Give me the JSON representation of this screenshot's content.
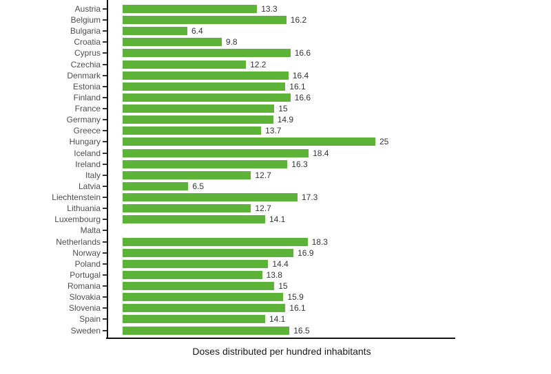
{
  "chart_data": {
    "type": "bar",
    "orientation": "horizontal",
    "title": "",
    "xlabel": "Doses distributed per hundred inhabitants",
    "ylabel": "",
    "xlim": [
      0,
      33
    ],
    "grid": false,
    "legend": false,
    "categories": [
      "Austria",
      "Belgium",
      "Bulgaria",
      "Croatia",
      "Cyprus",
      "Czechia",
      "Denmark",
      "Estonia",
      "Finland",
      "France",
      "Germany",
      "Greece",
      "Hungary",
      "Iceland",
      "Ireland",
      "Italy",
      "Latvia",
      "Liechtenstein",
      "Lithuania",
      "Luxembourg",
      "Malta",
      "Netherlands",
      "Norway",
      "Poland",
      "Portugal",
      "Romania",
      "Slovakia",
      "Slovenia",
      "Spain",
      "Sweden"
    ],
    "values": [
      13.3,
      16.2,
      6.4,
      9.8,
      16.6,
      12.2,
      16.4,
      16.1,
      16.6,
      15,
      14.9,
      13.7,
      25,
      18.4,
      16.3,
      12.7,
      6.5,
      17.3,
      12.7,
      14.1,
      null,
      18.3,
      16.9,
      14.4,
      13.8,
      15,
      15.9,
      16.1,
      14.1,
      16.5
    ],
    "value_labels": [
      "13.3",
      "16.2",
      "6.4",
      "9.8",
      "16.6",
      "12.2",
      "16.4",
      "16.1",
      "16.6",
      "15",
      "14.9",
      "13.7",
      "25",
      "18.4",
      "16.3",
      "12.7",
      "6.5",
      "17.3",
      "12.7",
      "14.1",
      "",
      "18.3",
      "16.9",
      "14.4",
      "13.8",
      "15",
      "15.9",
      "16.1",
      "14.1",
      "16.5"
    ],
    "colors": {
      "bar": "#5cb337",
      "category_label": "#4d4d4d",
      "value_label": "#333333",
      "axis_line": "#111111",
      "tick": "#333333",
      "axis_title": "#1a1a1a",
      "background": "#ffffff"
    }
  }
}
